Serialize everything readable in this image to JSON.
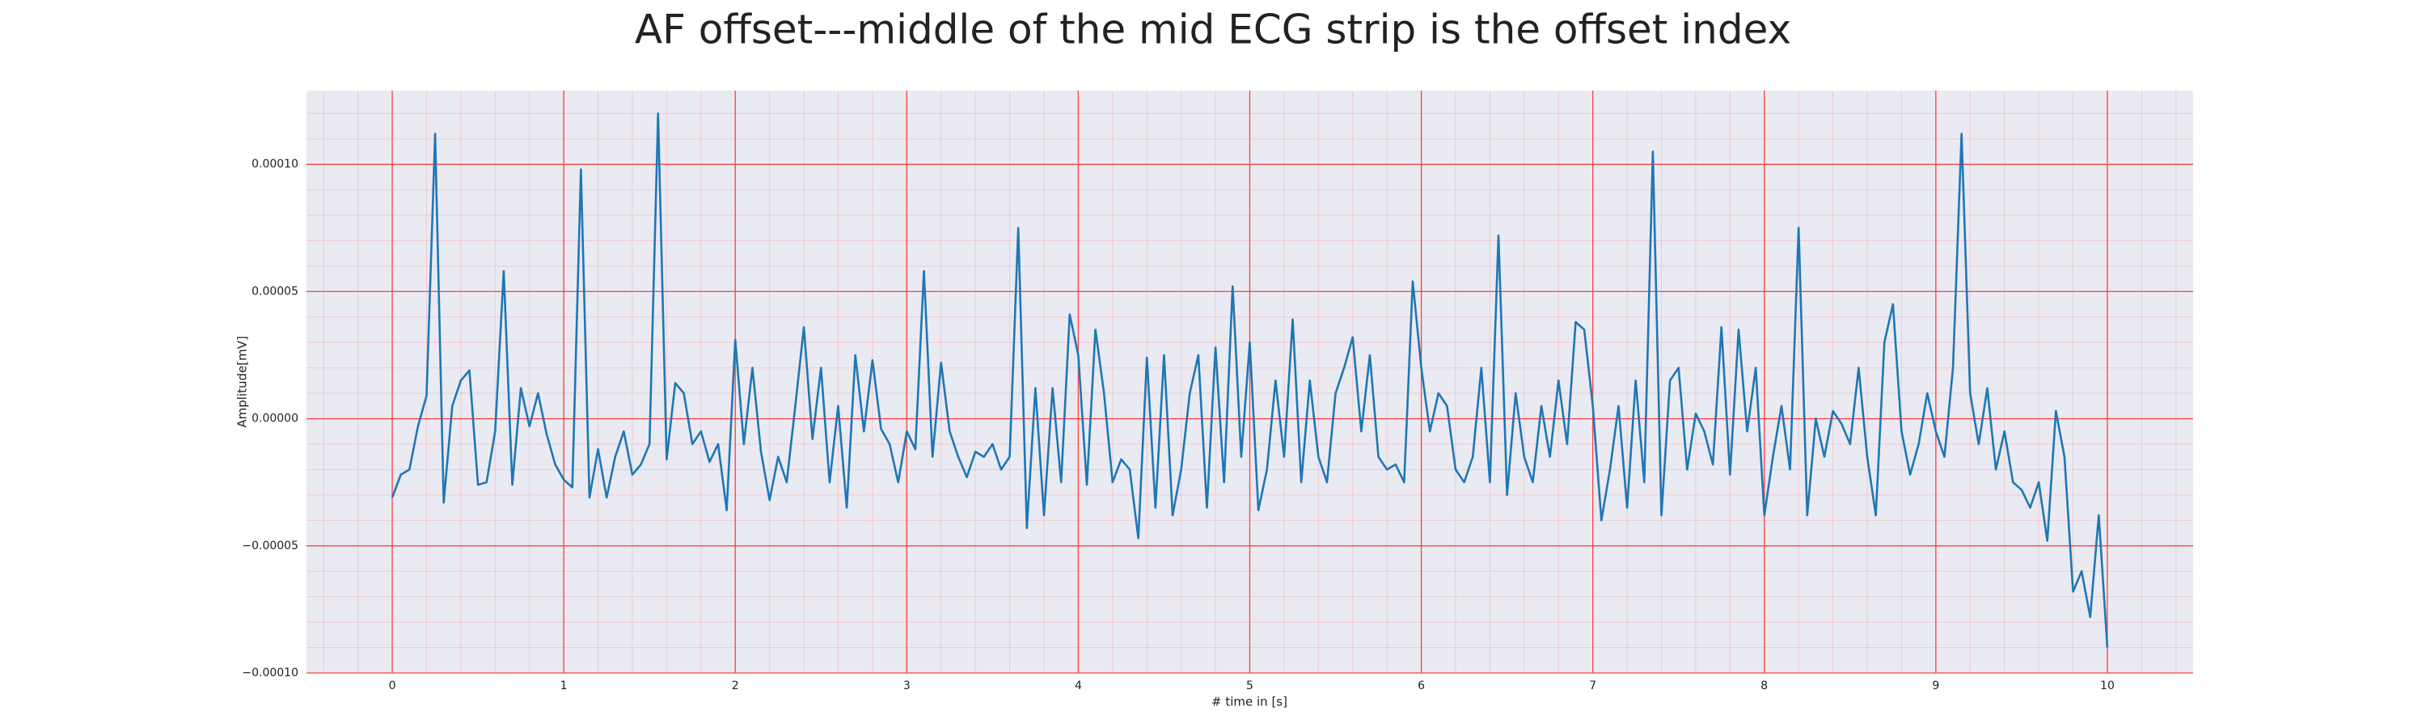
{
  "chart_data": {
    "type": "line",
    "title": "AF offset---middle of the mid ECG strip is the offset index",
    "x_label": "# time in [s]",
    "y_label": "Amplitude[mV]",
    "xlim": [
      -0.5,
      10.5
    ],
    "ylim": [
      -0.0001,
      0.000129
    ],
    "xticks": [
      0,
      1,
      2,
      3,
      4,
      5,
      6,
      7,
      8,
      9,
      10
    ],
    "yticks": [
      {
        "value": -0.0001,
        "label": "−0.00010"
      },
      {
        "value": -5e-05,
        "label": "−0.00005"
      },
      {
        "value": 0,
        "label": "0.00000"
      },
      {
        "value": 5e-05,
        "label": "0.00005"
      },
      {
        "value": 0.0001,
        "label": "0.00010"
      }
    ],
    "grid": true,
    "minor_grid": true,
    "grid_color": "#ff4040",
    "background": "#eaeaf2",
    "series": [
      {
        "color": "#1f77b4",
        "x": [
          0,
          0.05,
          0.1,
          0.15,
          0.2,
          0.25,
          0.3,
          0.35,
          0.4,
          0.45,
          0.5,
          0.55,
          0.6,
          0.65,
          0.7,
          0.75,
          0.8,
          0.85,
          0.9,
          0.95,
          1,
          1.05,
          1.1,
          1.15,
          1.2,
          1.25,
          1.3,
          1.35,
          1.4,
          1.45,
          1.5,
          1.55,
          1.6,
          1.65,
          1.7,
          1.75,
          1.8,
          1.85,
          1.9,
          1.95,
          2,
          2.05,
          2.1,
          2.15,
          2.2,
          2.25,
          2.3,
          2.35,
          2.4,
          2.45,
          2.5,
          2.55,
          2.6,
          2.65,
          2.7,
          2.75,
          2.8,
          2.85,
          2.9,
          2.95,
          3,
          3.05,
          3.1,
          3.15,
          3.2,
          3.25,
          3.3,
          3.35,
          3.4,
          3.45,
          3.5,
          3.55,
          3.6,
          3.65,
          3.7,
          3.75,
          3.8,
          3.85,
          3.9,
          3.95,
          4,
          4.05,
          4.1,
          4.15,
          4.2,
          4.25,
          4.3,
          4.35,
          4.4,
          4.45,
          4.5,
          4.55,
          4.6,
          4.65,
          4.7,
          4.75,
          4.8,
          4.85,
          4.9,
          4.95,
          5,
          5.05,
          5.1,
          5.15,
          5.2,
          5.25,
          5.3,
          5.35,
          5.4,
          5.45,
          5.5,
          5.55,
          5.6,
          5.65,
          5.7,
          5.75,
          5.8,
          5.85,
          5.9,
          5.95,
          6,
          6.05,
          6.1,
          6.15,
          6.2,
          6.25,
          6.3,
          6.35,
          6.4,
          6.45,
          6.5,
          6.55,
          6.6,
          6.65,
          6.7,
          6.75,
          6.8,
          6.85,
          6.9,
          6.95,
          7,
          7.05,
          7.1,
          7.15,
          7.2,
          7.25,
          7.3,
          7.35,
          7.4,
          7.45,
          7.5,
          7.55,
          7.6,
          7.65,
          7.7,
          7.75,
          7.8,
          7.85,
          7.9,
          7.95,
          8,
          8.05,
          8.1,
          8.15,
          8.2,
          8.25,
          8.3,
          8.35,
          8.4,
          8.45,
          8.5,
          8.55,
          8.6,
          8.65,
          8.7,
          8.75,
          8.8,
          8.85,
          8.9,
          8.95,
          9,
          9.05,
          9.1,
          9.15,
          9.2,
          9.25,
          9.3,
          9.35,
          9.4,
          9.45,
          9.5,
          9.55,
          9.6,
          9.65,
          9.7,
          9.75,
          9.8,
          9.85,
          9.9,
          9.95,
          10
        ],
        "values": [
          -3.1e-05,
          -2.2e-05,
          -2e-05,
          -3e-06,
          9e-06,
          0.000112,
          -3.3e-05,
          5e-06,
          1.5e-05,
          1.9e-05,
          -2.6e-05,
          -2.5e-05,
          -5e-06,
          5.8e-05,
          -2.6e-05,
          1.2e-05,
          -3e-06,
          1e-05,
          -6e-06,
          -1.8e-05,
          -2.4e-05,
          -2.7e-05,
          9.8e-05,
          -3.1e-05,
          -1.2e-05,
          -3.1e-05,
          -1.5e-05,
          -5e-06,
          -2.2e-05,
          -1.8e-05,
          -1e-05,
          0.00012,
          -1.6e-05,
          1.4e-05,
          1e-05,
          -1e-05,
          -5e-06,
          -1.7e-05,
          -1e-05,
          -3.6e-05,
          3.1e-05,
          -1e-05,
          2e-05,
          -1.3e-05,
          -3.2e-05,
          -1.5e-05,
          -2.5e-05,
          5e-06,
          3.6e-05,
          -8e-06,
          2e-05,
          -2.5e-05,
          5e-06,
          -3.5e-05,
          2.5e-05,
          -5e-06,
          2.3e-05,
          -4e-06,
          -1e-05,
          -2.5e-05,
          -5e-06,
          -1.2e-05,
          5.8e-05,
          -1.5e-05,
          2.2e-05,
          -5e-06,
          -1.5e-05,
          -2.3e-05,
          -1.3e-05,
          -1.5e-05,
          -1e-05,
          -2e-05,
          -1.5e-05,
          7.5e-05,
          -4.3e-05,
          1.2e-05,
          -3.8e-05,
          1.2e-05,
          -2.5e-05,
          4.1e-05,
          2.5e-05,
          -2.6e-05,
          3.5e-05,
          1e-05,
          -2.5e-05,
          -1.6e-05,
          -2e-05,
          -4.7e-05,
          2.4e-05,
          -3.5e-05,
          2.5e-05,
          -3.8e-05,
          -2e-05,
          1e-05,
          2.5e-05,
          -3.5e-05,
          2.8e-05,
          -2.5e-05,
          5.2e-05,
          -1.5e-05,
          3e-05,
          -3.6e-05,
          -2e-05,
          1.5e-05,
          -1.5e-05,
          3.9e-05,
          -2.5e-05,
          1.5e-05,
          -1.5e-05,
          -2.5e-05,
          1e-05,
          2e-05,
          3.2e-05,
          -5e-06,
          2.5e-05,
          -1.5e-05,
          -2e-05,
          -1.8e-05,
          -2.5e-05,
          5.4e-05,
          2e-05,
          -5e-06,
          1e-05,
          5e-06,
          -2e-05,
          -2.5e-05,
          -1.5e-05,
          2e-05,
          -2.5e-05,
          7.2e-05,
          -3e-05,
          1e-05,
          -1.5e-05,
          -2.5e-05,
          5e-06,
          -1.5e-05,
          1.5e-05,
          -1e-05,
          3.8e-05,
          3.5e-05,
          5e-06,
          -4e-05,
          -2e-05,
          5e-06,
          -3.5e-05,
          1.5e-05,
          -2.5e-05,
          0.000105,
          -3.8e-05,
          1.5e-05,
          2e-05,
          -2e-05,
          2e-06,
          -5e-06,
          -1.8e-05,
          3.6e-05,
          -2.2e-05,
          3.5e-05,
          -5e-06,
          2e-05,
          -3.8e-05,
          -1.5e-05,
          5e-06,
          -2e-05,
          7.5e-05,
          -3.8e-05,
          0,
          -1.5e-05,
          3e-06,
          -2e-06,
          -1e-05,
          2e-05,
          -1.5e-05,
          -3.8e-05,
          3e-05,
          4.5e-05,
          -5e-06,
          -2.2e-05,
          -1e-05,
          1e-05,
          -5e-06,
          -1.5e-05,
          2e-05,
          0.000112,
          1e-05,
          -1e-05,
          1.2e-05,
          -2e-05,
          -5e-06,
          -2.5e-05,
          -2.8e-05,
          -3.5e-05,
          -2.5e-05,
          -4.8e-05,
          3e-06,
          -1.5e-05,
          -6.8e-05,
          -6e-05,
          -7.8e-05,
          -3.8e-05,
          -9e-05
        ]
      }
    ]
  }
}
